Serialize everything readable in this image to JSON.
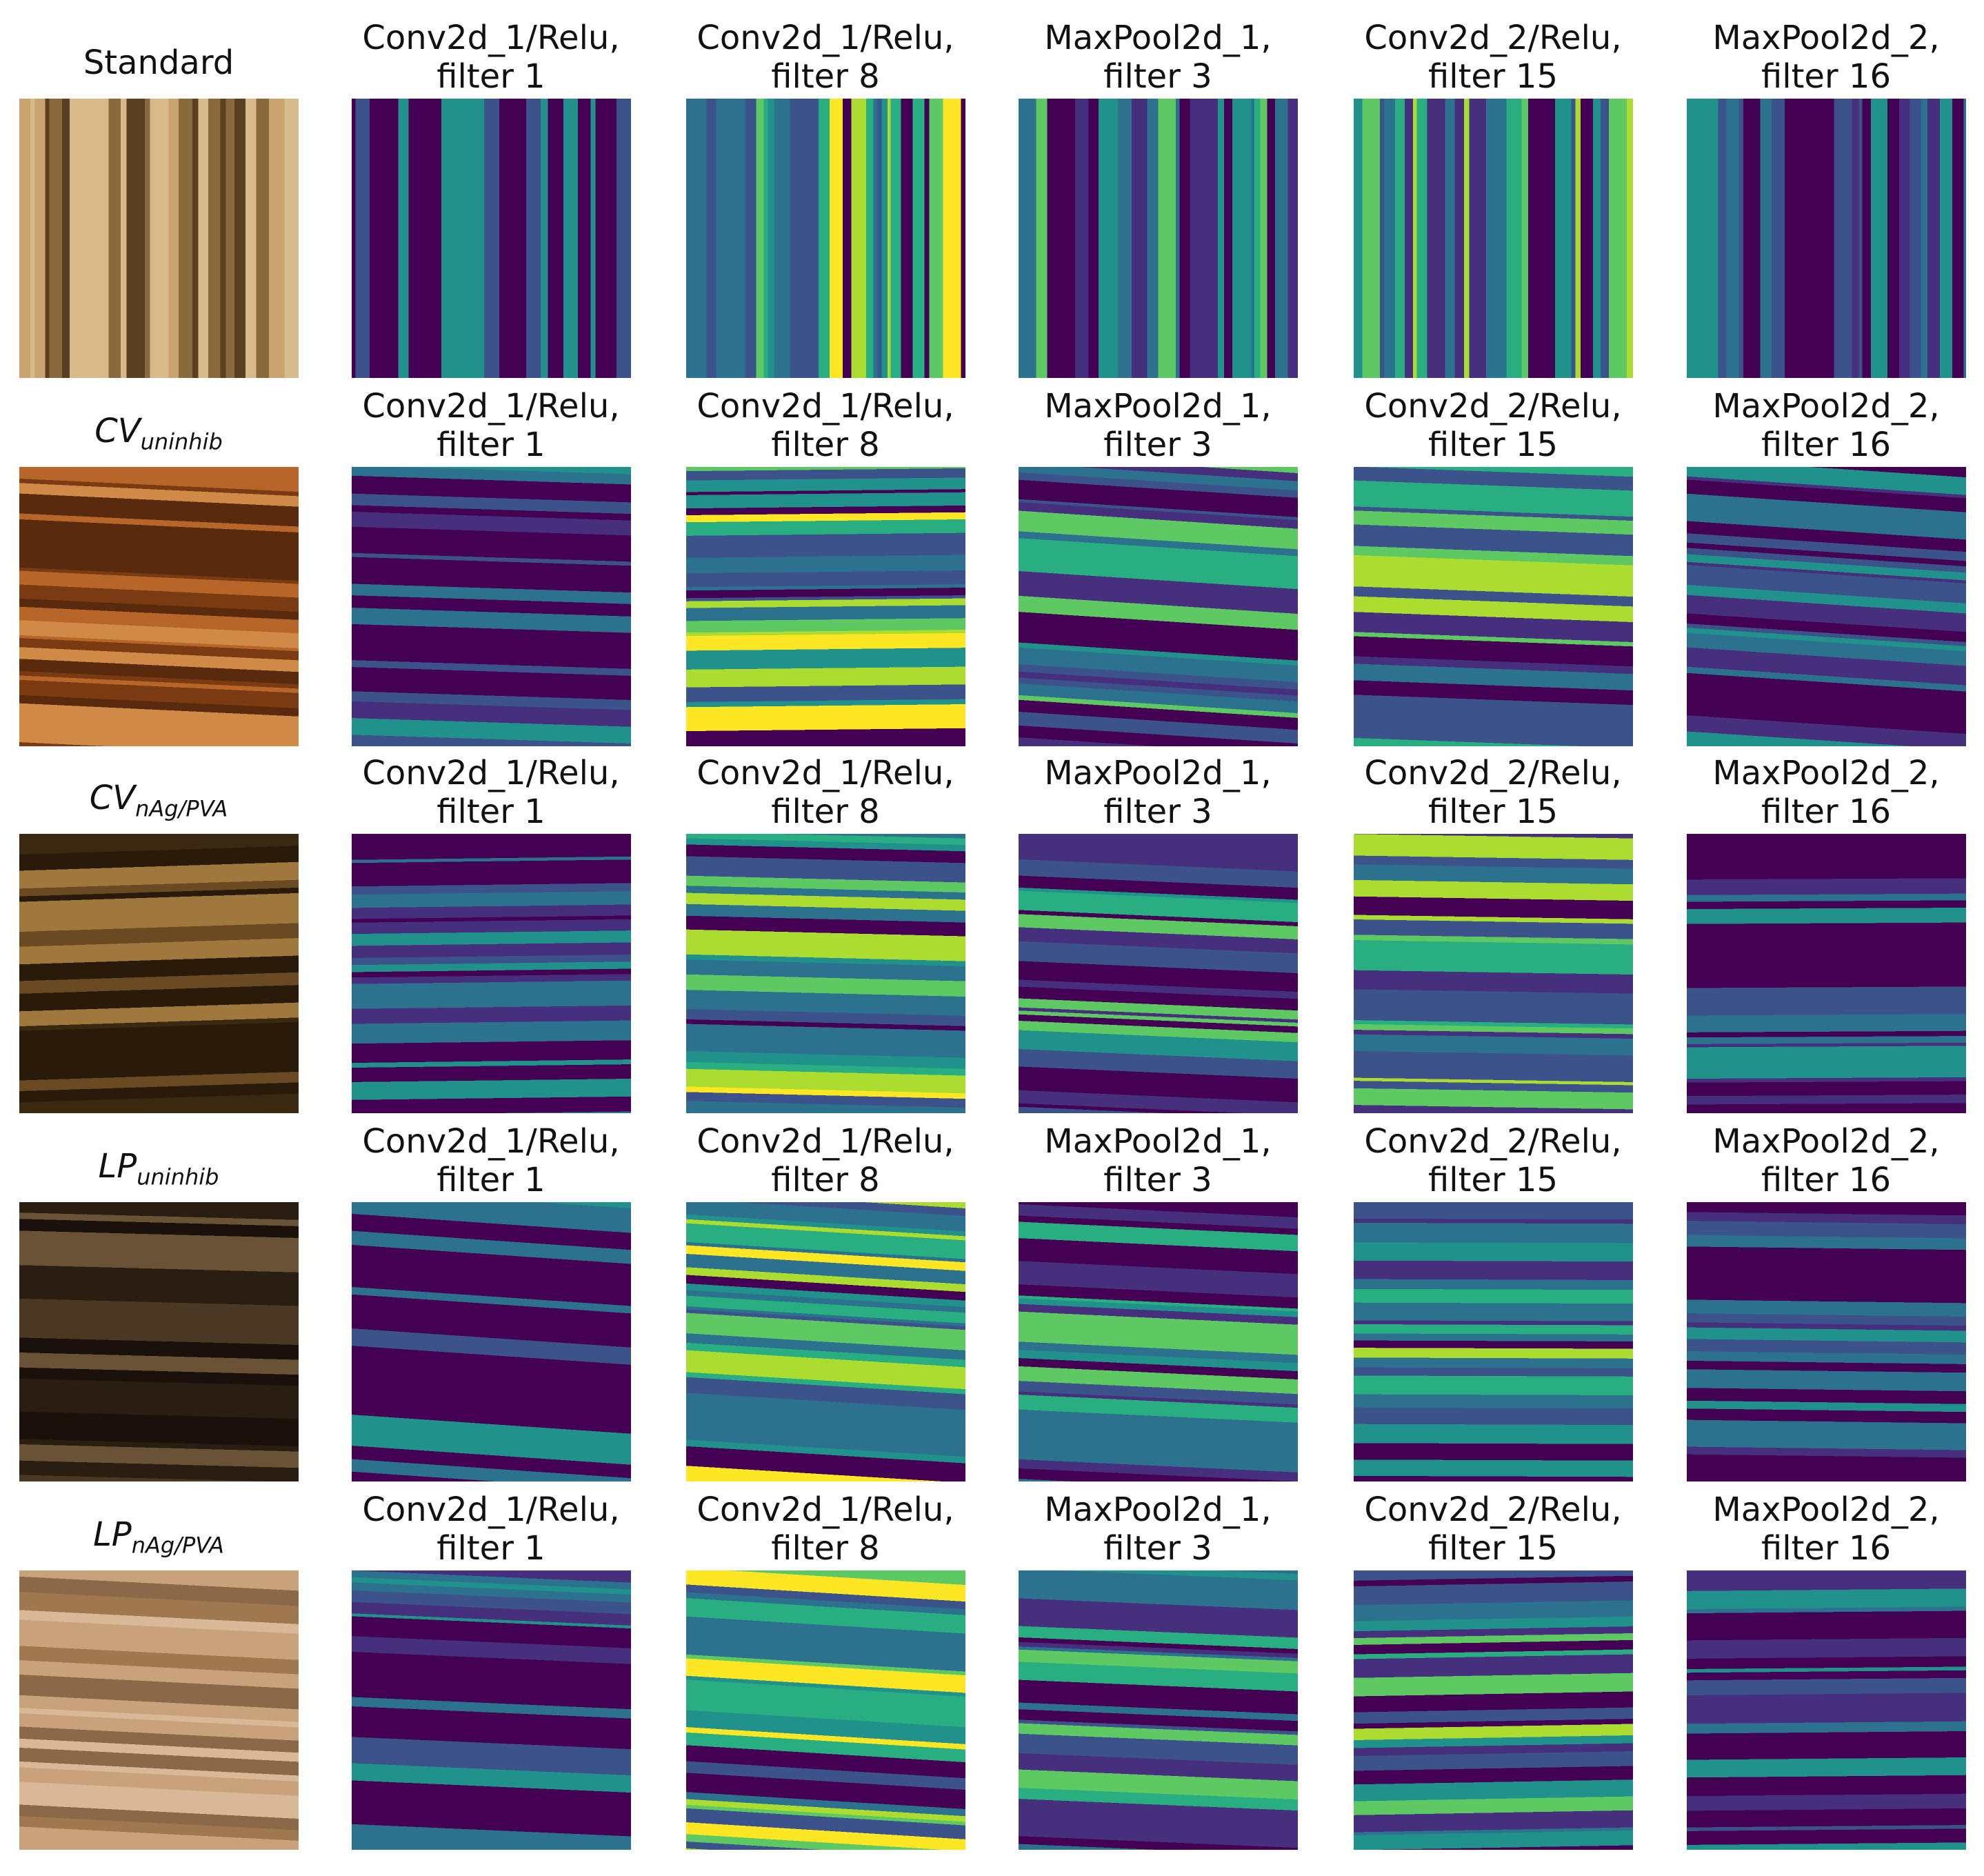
{
  "rows": [
    {
      "label": {
        "main": "Standard"
      },
      "panels": [
        [
          "Conv2d_1/Relu,",
          "filter 1"
        ],
        [
          "Conv2d_1/Relu,",
          "filter 8"
        ],
        [
          "MaxPool2d_1,",
          "filter 3"
        ],
        [
          "Conv2d_2/Relu,",
          "filter 15"
        ],
        [
          "MaxPool2d_2,",
          "filter 16"
        ]
      ]
    },
    {
      "label": {
        "main": "CV",
        "sub": "uninhib"
      },
      "panels": [
        [
          "Conv2d_1/Relu,",
          "filter 1"
        ],
        [
          "Conv2d_1/Relu,",
          "filter 8"
        ],
        [
          "MaxPool2d_1,",
          "filter 3"
        ],
        [
          "Conv2d_2/Relu,",
          "filter 15"
        ],
        [
          "MaxPool2d_2,",
          "filter 16"
        ]
      ]
    },
    {
      "label": {
        "main": "CV",
        "sub": "nAg/PVA"
      },
      "panels": [
        [
          "Conv2d_1/Relu,",
          "filter 1"
        ],
        [
          "Conv2d_1/Relu,",
          "filter 8"
        ],
        [
          "MaxPool2d_1,",
          "filter 3"
        ],
        [
          "Conv2d_2/Relu,",
          "filter 15"
        ],
        [
          "MaxPool2d_2,",
          "filter 16"
        ]
      ]
    },
    {
      "label": {
        "main": "LP",
        "sub": "uninhib"
      },
      "panels": [
        [
          "Conv2d_1/Relu,",
          "filter 1"
        ],
        [
          "Conv2d_1/Relu,",
          "filter 8"
        ],
        [
          "MaxPool2d_1,",
          "filter 3"
        ],
        [
          "Conv2d_2/Relu,",
          "filter 15"
        ],
        [
          "MaxPool2d_2,",
          "filter 16"
        ]
      ]
    },
    {
      "label": {
        "main": "LP",
        "sub": "nAg/PVA"
      },
      "panels": [
        [
          "Conv2d_1/Relu,",
          "filter 1"
        ],
        [
          "Conv2d_1/Relu,",
          "filter 8"
        ],
        [
          "MaxPool2d_1,",
          "filter 3"
        ],
        [
          "Conv2d_2/Relu,",
          "filter 15"
        ],
        [
          "MaxPool2d_2,",
          "filter 16"
        ]
      ]
    }
  ]
}
